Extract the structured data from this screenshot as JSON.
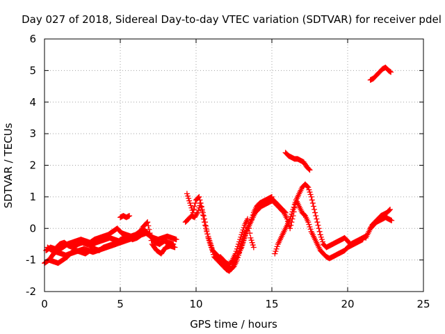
{
  "chart_data": {
    "type": "scatter",
    "title": "Day 027 of 2018, Sidereal Day-to-day VTEC variation (SDTVAR) for receiver pdel",
    "xlabel": "GPS time / hours",
    "ylabel": "SDTVAR / TECUs",
    "xlim": [
      0,
      25
    ],
    "ylim": [
      -2,
      6
    ],
    "x_ticks": [
      0,
      5,
      10,
      15,
      20,
      25
    ],
    "y_ticks": [
      -2,
      -1,
      0,
      1,
      2,
      3,
      4,
      5,
      6
    ],
    "grid": true,
    "legend": "none",
    "marker": "+",
    "series_color": "#ff0000",
    "series": [
      {
        "name": "trace-1",
        "x": [
          0.0,
          0.3,
          0.6,
          0.9,
          1.2,
          1.5,
          1.8,
          2.1,
          2.4,
          2.7,
          3.0,
          3.3,
          3.6,
          3.9,
          4.2,
          4.5,
          4.8,
          5.1,
          5.4,
          5.7,
          6.0,
          6.3,
          6.6,
          6.9,
          7.2,
          7.5,
          7.8,
          8.1,
          8.4,
          8.7
        ],
        "y": [
          -1.1,
          -1.0,
          -0.8,
          -0.7,
          -0.6,
          -0.5,
          -0.45,
          -0.4,
          -0.35,
          -0.4,
          -0.45,
          -0.35,
          -0.3,
          -0.25,
          -0.2,
          -0.1,
          0.0,
          -0.15,
          -0.2,
          -0.25,
          -0.2,
          -0.1,
          -0.05,
          -0.2,
          -0.3,
          -0.35,
          -0.3,
          -0.25,
          -0.3,
          -0.35
        ]
      },
      {
        "name": "trace-2",
        "x": [
          0.2,
          0.5,
          0.8,
          1.1,
          1.4,
          1.7,
          2.0,
          2.3,
          2.6,
          2.9,
          3.2,
          3.5,
          3.8,
          4.1,
          4.4,
          4.7,
          5.0,
          5.3,
          5.6,
          5.9,
          6.2,
          6.5,
          6.8,
          7.1,
          7.4,
          7.7,
          8.0,
          8.3,
          8.6
        ],
        "y": [
          -0.6,
          -0.7,
          -0.75,
          -0.8,
          -0.85,
          -0.8,
          -0.75,
          -0.7,
          -0.65,
          -0.7,
          -0.75,
          -0.7,
          -0.65,
          -0.6,
          -0.55,
          -0.5,
          -0.45,
          -0.4,
          -0.35,
          -0.3,
          -0.2,
          0.05,
          0.2,
          -0.5,
          -0.7,
          -0.8,
          -0.6,
          -0.55,
          -0.6
        ]
      },
      {
        "name": "trace-3",
        "x": [
          0.1,
          0.4,
          0.7,
          1.0,
          1.3,
          1.6,
          1.9,
          2.2,
          2.5,
          2.8,
          3.1,
          3.4,
          3.7,
          4.0,
          4.3,
          4.6,
          4.9,
          5.2,
          5.5,
          5.8,
          6.1,
          6.4,
          6.7,
          7.0,
          7.3,
          7.6,
          7.9,
          8.2,
          8.5
        ],
        "y": [
          -0.7,
          -0.6,
          -0.65,
          -0.5,
          -0.45,
          -0.55,
          -0.6,
          -0.5,
          -0.45,
          -0.5,
          -0.55,
          -0.45,
          -0.4,
          -0.35,
          -0.3,
          -0.35,
          -0.4,
          -0.3,
          -0.25,
          -0.35,
          -0.3,
          -0.2,
          -0.15,
          -0.25,
          -0.45,
          -0.5,
          -0.4,
          -0.45,
          -0.5
        ]
      },
      {
        "name": "trace-4",
        "x": [
          0.3,
          0.6,
          0.9,
          1.2,
          1.5,
          1.8,
          2.1,
          2.4,
          2.7,
          3.0,
          3.3,
          3.6,
          3.9,
          4.2,
          4.5,
          4.8
        ],
        "y": [
          -1.0,
          -1.05,
          -1.1,
          -1.0,
          -0.9,
          -0.75,
          -0.7,
          -0.75,
          -0.8,
          -0.7,
          -0.65,
          -0.7,
          -0.6,
          -0.55,
          -0.5,
          -0.4
        ]
      },
      {
        "name": "trace-5",
        "x": [
          5.0,
          5.2,
          5.4,
          5.6
        ],
        "y": [
          0.35,
          0.4,
          0.35,
          0.4
        ]
      },
      {
        "name": "trace-6",
        "x": [
          9.3,
          9.5,
          9.7,
          9.9,
          10.1,
          10.3,
          10.5,
          10.7,
          10.9,
          11.1,
          11.3,
          11.5,
          11.7,
          11.9,
          12.1,
          12.3,
          12.5,
          12.7,
          12.9,
          13.1,
          13.3,
          13.5,
          13.7,
          13.9,
          14.1,
          14.3,
          14.5,
          14.7,
          14.9,
          15.1,
          15.3,
          15.5,
          15.7,
          15.9
        ],
        "y": [
          0.2,
          0.3,
          0.4,
          0.35,
          0.5,
          0.8,
          0.3,
          -0.1,
          -0.4,
          -0.7,
          -0.8,
          -0.9,
          -1.0,
          -1.1,
          -1.2,
          -1.3,
          -1.2,
          -1.0,
          -0.7,
          -0.4,
          -0.1,
          0.1,
          0.3,
          0.5,
          0.6,
          0.7,
          0.75,
          0.8,
          0.85,
          0.9,
          0.8,
          0.7,
          0.6,
          0.5
        ]
      },
      {
        "name": "trace-7",
        "x": [
          9.4,
          9.6,
          9.8,
          10.0,
          10.2,
          10.4,
          10.6,
          10.8,
          11.0,
          11.2,
          11.4,
          11.6,
          11.8,
          12.0,
          12.2,
          12.4,
          12.6,
          12.8,
          13.0,
          13.2,
          13.4,
          13.6,
          13.8,
          14.0,
          14.2,
          14.4,
          14.6,
          14.8,
          15.0
        ],
        "y": [
          1.1,
          0.8,
          0.5,
          0.9,
          1.0,
          0.6,
          0.2,
          -0.3,
          -0.6,
          -0.9,
          -1.0,
          -1.1,
          -1.2,
          -1.3,
          -1.35,
          -1.2,
          -1.0,
          -0.8,
          -0.6,
          -0.3,
          0.0,
          0.2,
          0.5,
          0.7,
          0.8,
          0.85,
          0.9,
          0.95,
          1.0
        ]
      },
      {
        "name": "trace-8",
        "x": [
          11.6,
          11.8,
          12.0,
          12.2,
          12.4,
          12.6,
          12.8,
          13.0,
          13.2,
          13.4,
          13.6,
          13.8
        ],
        "y": [
          -0.9,
          -1.0,
          -1.1,
          -1.15,
          -1.0,
          -0.8,
          -0.5,
          -0.2,
          0.1,
          0.3,
          -0.3,
          -0.6
        ]
      },
      {
        "name": "trace-9",
        "x": [
          15.2,
          15.4,
          15.6,
          15.8,
          16.0,
          16.2,
          16.4,
          16.6,
          16.8,
          17.0,
          17.2,
          17.4,
          17.6,
          17.8,
          18.0,
          18.2,
          18.4,
          18.6,
          18.8,
          19.0,
          19.2,
          19.4,
          19.6,
          19.8,
          20.0,
          20.2,
          20.4,
          20.6,
          20.8,
          21.0,
          21.2
        ],
        "y": [
          -0.8,
          -0.5,
          -0.3,
          -0.1,
          0.1,
          0.3,
          0.6,
          0.9,
          1.1,
          1.3,
          1.4,
          1.3,
          1.0,
          0.6,
          0.2,
          -0.2,
          -0.5,
          -0.6,
          -0.55,
          -0.5,
          -0.45,
          -0.4,
          -0.35,
          -0.3,
          -0.4,
          -0.5,
          -0.45,
          -0.4,
          -0.35,
          -0.3,
          -0.25
        ]
      },
      {
        "name": "trace-10",
        "x": [
          15.0,
          15.2,
          15.4,
          15.6,
          15.8,
          16.0,
          16.2,
          16.4,
          16.6,
          16.8,
          17.0,
          17.2,
          17.4,
          17.6,
          17.8,
          18.0,
          18.2,
          18.4,
          18.6,
          18.8,
          19.0,
          19.2,
          19.4,
          19.6,
          19.8,
          20.0,
          20.2,
          20.4,
          20.6,
          20.8,
          21.0
        ],
        "y": [
          0.9,
          0.8,
          0.7,
          0.6,
          0.5,
          0.3,
          0.0,
          0.4,
          0.9,
          0.7,
          0.5,
          0.4,
          0.2,
          -0.1,
          -0.3,
          -0.5,
          -0.7,
          -0.8,
          -0.9,
          -0.95,
          -0.9,
          -0.85,
          -0.8,
          -0.75,
          -0.7,
          -0.6,
          -0.55,
          -0.5,
          -0.45,
          -0.4,
          -0.35
        ]
      },
      {
        "name": "trace-11",
        "x": [
          15.9,
          16.1,
          16.3,
          16.5,
          16.7,
          16.9,
          17.1,
          17.3,
          17.5
        ],
        "y": [
          2.4,
          2.3,
          2.25,
          2.2,
          2.2,
          2.15,
          2.1,
          1.95,
          1.85
        ]
      },
      {
        "name": "trace-12",
        "x": [
          21.2,
          21.4,
          21.6,
          21.8,
          22.0,
          22.2,
          22.4,
          22.6,
          22.8
        ],
        "y": [
          -0.3,
          -0.1,
          0.1,
          0.2,
          0.3,
          0.4,
          0.45,
          0.5,
          0.6
        ]
      },
      {
        "name": "trace-13",
        "x": [
          21.5,
          21.7,
          21.9,
          22.1,
          22.3,
          22.5,
          22.7,
          22.9
        ],
        "y": [
          0.0,
          0.1,
          0.2,
          0.25,
          0.3,
          0.35,
          0.3,
          0.25
        ]
      },
      {
        "name": "trace-14",
        "x": [
          21.5,
          21.7,
          21.9,
          22.1,
          22.3,
          22.5,
          22.7,
          22.85
        ],
        "y": [
          4.7,
          4.75,
          4.85,
          4.95,
          5.05,
          5.1,
          5.0,
          4.95
        ]
      }
    ]
  }
}
